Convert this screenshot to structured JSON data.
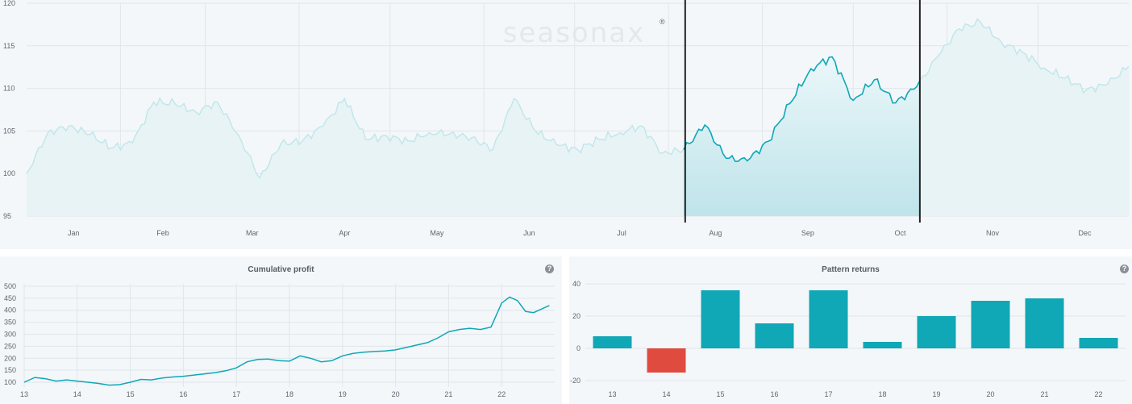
{
  "brand": {
    "watermark": "seasonax",
    "trademark": "®"
  },
  "colors": {
    "accent": "#10a7b6",
    "faded_line": "#bfe6ea",
    "fill": "#d6eef2",
    "negative": "#e04b40",
    "grid": "#e0e6ea",
    "panel_bg": "#f3f7fa"
  },
  "chart_data": [
    {
      "id": "seasonal",
      "type": "line",
      "title": "",
      "xlabel": "",
      "ylabel": "",
      "ylim": [
        95,
        120
      ],
      "yticks": [
        95,
        100,
        105,
        110,
        115,
        120
      ],
      "months": [
        "Jan",
        "Feb",
        "Mar",
        "Apr",
        "May",
        "Jun",
        "Jul",
        "Aug",
        "Sep",
        "Oct",
        "Nov",
        "Dec"
      ],
      "highlight_range": [
        218.5,
        296
      ],
      "x": [
        1,
        8,
        15,
        22,
        29,
        36,
        43,
        50,
        57,
        64,
        71,
        78,
        85,
        92,
        99,
        106,
        113,
        120,
        127,
        134,
        141,
        148,
        155,
        162,
        169,
        176,
        183,
        190,
        197,
        204,
        211,
        218,
        225,
        232,
        239,
        246,
        253,
        260,
        267,
        274,
        281,
        288,
        295,
        302,
        309,
        316,
        323,
        330,
        337,
        344,
        351,
        358,
        365
      ],
      "values": [
        100.0,
        104.8,
        105.6,
        104.6,
        103.0,
        103.6,
        108.4,
        108.2,
        107.2,
        108.4,
        104.5,
        99.5,
        103.5,
        103.8,
        105.6,
        108.8,
        104.0,
        104.4,
        103.8,
        104.8,
        104.7,
        104.2,
        102.8,
        108.8,
        105.0,
        103.4,
        102.8,
        104.0,
        104.8,
        105.6,
        102.4,
        102.8,
        105.7,
        101.8,
        101.5,
        103.8,
        108.2,
        112.3,
        113.7,
        108.6,
        111.0,
        108.3,
        110.2,
        113.8,
        117.0,
        117.8,
        115.4,
        114.2,
        112.4,
        111.2,
        109.8,
        110.5,
        112.6
      ]
    },
    {
      "id": "cumulative",
      "type": "line",
      "title": "Cumulative profit",
      "xlabel": "",
      "ylabel": "",
      "ylim": [
        80,
        510
      ],
      "yticks": [
        100,
        150,
        200,
        250,
        300,
        350,
        400,
        450,
        500
      ],
      "xticks": [
        13,
        14,
        15,
        16,
        17,
        18,
        19,
        20,
        21,
        22
      ],
      "x": [
        13.0,
        13.2,
        13.4,
        13.6,
        13.8,
        14.0,
        14.2,
        14.4,
        14.6,
        14.8,
        15.0,
        15.2,
        15.4,
        15.6,
        15.8,
        16.0,
        16.2,
        16.4,
        16.6,
        16.8,
        17.0,
        17.2,
        17.4,
        17.6,
        17.8,
        18.0,
        18.2,
        18.4,
        18.6,
        18.8,
        19.0,
        19.2,
        19.4,
        19.6,
        19.8,
        20.0,
        20.2,
        20.4,
        20.6,
        20.8,
        21.0,
        21.2,
        21.4,
        21.6,
        21.8,
        22.0,
        22.15,
        22.3,
        22.45,
        22.6,
        22.75,
        22.9
      ],
      "values": [
        100,
        120,
        115,
        105,
        110,
        105,
        100,
        95,
        88,
        90,
        100,
        112,
        110,
        118,
        122,
        125,
        130,
        135,
        140,
        148,
        160,
        185,
        195,
        197,
        190,
        188,
        210,
        200,
        185,
        190,
        210,
        220,
        225,
        228,
        230,
        235,
        245,
        255,
        265,
        285,
        310,
        320,
        325,
        320,
        330,
        430,
        455,
        440,
        395,
        390,
        405,
        420
      ]
    },
    {
      "id": "pattern_returns",
      "type": "bar",
      "title": "Pattern returns",
      "xlabel": "",
      "ylabel": "",
      "ylim": [
        -20,
        40
      ],
      "yticks": [
        -20,
        0,
        20,
        40
      ],
      "categories": [
        "13",
        "14",
        "15",
        "16",
        "17",
        "18",
        "19",
        "20",
        "21",
        "22"
      ],
      "values": [
        7.5,
        -15,
        36,
        15.5,
        36,
        4,
        20,
        29.5,
        31,
        6.5
      ]
    }
  ]
}
